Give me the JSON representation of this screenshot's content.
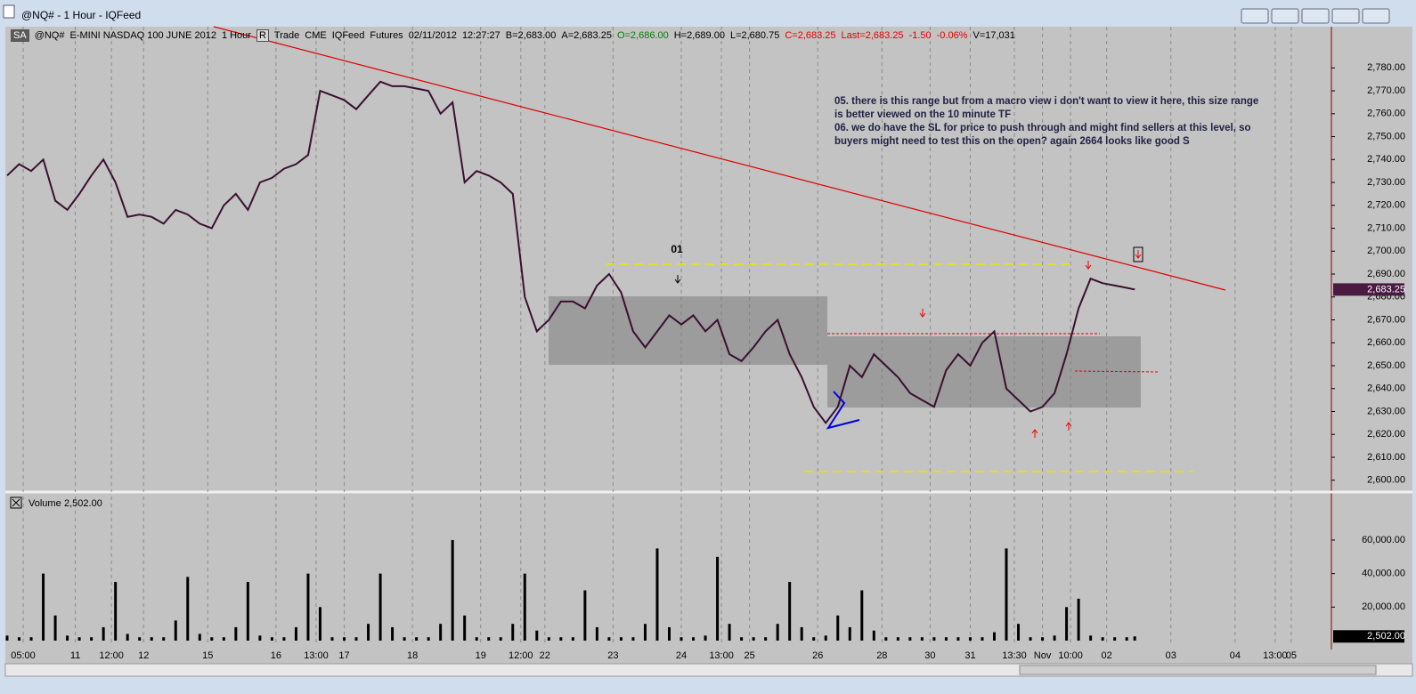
{
  "window": {
    "title": "@NQ# - 1 Hour - IQFeed"
  },
  "toolbar": {
    "symbol_box": "SA",
    "symbol": "@NQ#",
    "description": "E-MINI NASDAQ 100 JUNE 2012",
    "interval": "1 Hour",
    "r_button": "R",
    "fields": [
      "Trade",
      "CME",
      "IQFeed",
      "Futures",
      "02/11/2012",
      "12:27:27",
      "B=2,683.00",
      "A=2,683.25",
      "O=2,686.00",
      "H=2,689.00",
      "L=2,680.75",
      "C=2,683.25",
      "Last=2,683.25",
      "-1.50",
      "-0.06%",
      "V=17,031"
    ]
  },
  "chart_data": [
    {
      "type": "line",
      "color": "#3a1030",
      "x": [
        0,
        3,
        6,
        9,
        12,
        15,
        18,
        21,
        24,
        27,
        30,
        33,
        36,
        39,
        42,
        45,
        48,
        51,
        54,
        57,
        60,
        63,
        66,
        69,
        72,
        75,
        78,
        81,
        84,
        87,
        90,
        93,
        96,
        99,
        102,
        105,
        108,
        111,
        114,
        117,
        120,
        123,
        126,
        129,
        132,
        135,
        138,
        141,
        144,
        147,
        150,
        153,
        156,
        159,
        162,
        165,
        168,
        171,
        174,
        177,
        180,
        183,
        186,
        189,
        192,
        195,
        198,
        201,
        204,
        207,
        210,
        213,
        216,
        219,
        222,
        225,
        228,
        231,
        234,
        237,
        240,
        243,
        246,
        249,
        252,
        255,
        258,
        261,
        264,
        267,
        270,
        273,
        276,
        279,
        281
      ],
      "values": [
        2733,
        2738,
        2735,
        2740,
        2722,
        2718,
        2725,
        2733,
        2740,
        2730,
        2715,
        2716,
        2715,
        2712,
        2718,
        2716,
        2712,
        2710,
        2720,
        2725,
        2718,
        2730,
        2732,
        2736,
        2738,
        2742,
        2770,
        2768,
        2766,
        2762,
        2768,
        2774,
        2772,
        2772,
        2771,
        2770,
        2760,
        2765,
        2730,
        2735,
        2733,
        2730,
        2725,
        2680,
        2665,
        2670,
        2678,
        2678,
        2675,
        2685,
        2690,
        2682,
        2665,
        2658,
        2665,
        2672,
        2668,
        2672,
        2665,
        2670,
        2655,
        2652,
        2658,
        2665,
        2670,
        2655,
        2645,
        2632,
        2625,
        2632,
        2650,
        2645,
        2655,
        2650,
        2645,
        2638,
        2635,
        2632,
        2648,
        2655,
        2650,
        2660,
        2665,
        2640,
        2635,
        2630,
        2632,
        2638,
        2655,
        2675,
        2688,
        2686,
        2685,
        2684,
        2683.25
      ],
      "xlim": [
        0,
        330
      ],
      "ylim": [
        2596,
        2798
      ],
      "yticks": [
        {
          "value": 2600,
          "label": "2,600.00"
        },
        {
          "value": 2610,
          "label": "2,610.00"
        },
        {
          "value": 2620,
          "label": "2,620.00"
        },
        {
          "value": 2630,
          "label": "2,630.00"
        },
        {
          "value": 2640,
          "label": "2,640.00"
        },
        {
          "value": 2650,
          "label": "2,650.00"
        },
        {
          "value": 2660,
          "label": "2,660.00"
        },
        {
          "value": 2670,
          "label": "2,670.00"
        },
        {
          "value": 2680,
          "label": "2,680.00"
        },
        {
          "value": 2690,
          "label": "2,690.00"
        },
        {
          "value": 2700,
          "label": "2,700.00"
        },
        {
          "value": 2710,
          "label": "2,710.00"
        },
        {
          "value": 2720,
          "label": "2,720.00"
        },
        {
          "value": 2730,
          "label": "2,730.00"
        },
        {
          "value": 2740,
          "label": "2,740.00"
        },
        {
          "value": 2750,
          "label": "2,750.00"
        },
        {
          "value": 2760,
          "label": "2,760.00"
        },
        {
          "value": 2770,
          "label": "2,770.00"
        },
        {
          "value": 2780,
          "label": "2,780.00"
        }
      ],
      "last": {
        "value": 2683.25,
        "label": "2,683.25"
      },
      "annotations": [
        "01",
        "05. there is this range but from a macro view i don't want to view it here, this size range",
        "is better viewed on the 10 minute TF",
        "06. we do have the SL for price to push through and might find sellers at this level, so",
        "buyers might need to test this on the open? again 2664 looks like good S"
      ]
    },
    {
      "type": "bar",
      "title": "Volume",
      "color": "#000000",
      "x": [
        0,
        3,
        6,
        9,
        12,
        15,
        18,
        21,
        24,
        27,
        30,
        33,
        36,
        39,
        42,
        45,
        48,
        51,
        54,
        57,
        60,
        63,
        66,
        69,
        72,
        75,
        78,
        81,
        84,
        87,
        90,
        93,
        96,
        99,
        102,
        105,
        108,
        111,
        114,
        117,
        120,
        123,
        126,
        129,
        132,
        135,
        138,
        141,
        144,
        147,
        150,
        153,
        156,
        159,
        162,
        165,
        168,
        171,
        174,
        177,
        180,
        183,
        186,
        189,
        192,
        195,
        198,
        201,
        204,
        207,
        210,
        213,
        216,
        219,
        222,
        225,
        228,
        231,
        234,
        237,
        240,
        243,
        246,
        249,
        252,
        255,
        258,
        261,
        264,
        267,
        270,
        273,
        276,
        279,
        281
      ],
      "values": [
        3000,
        2000,
        2000,
        40000,
        15000,
        3000,
        2000,
        2000,
        8000,
        35000,
        4000,
        2000,
        2000,
        2000,
        12000,
        38000,
        4000,
        2000,
        2000,
        8000,
        35000,
        3000,
        2000,
        2000,
        8000,
        40000,
        20000,
        2000,
        2000,
        2000,
        10000,
        40000,
        8000,
        2000,
        2000,
        2000,
        10000,
        60000,
        15000,
        2000,
        2000,
        2000,
        10000,
        40000,
        6000,
        2000,
        2000,
        2000,
        30000,
        8000,
        2000,
        2000,
        2000,
        10000,
        55000,
        8000,
        2000,
        2000,
        3000,
        50000,
        10000,
        2000,
        2000,
        2000,
        10000,
        35000,
        8000,
        2000,
        3000,
        15000,
        8000,
        30000,
        6000,
        2000,
        2000,
        2000,
        2000,
        2000,
        2000,
        2000,
        2000,
        2000,
        5000,
        55000,
        10000,
        2000,
        2000,
        3000,
        20000,
        25000,
        3000,
        2000,
        2000,
        2000,
        2502
      ],
      "xlim": [
        0,
        330
      ],
      "ylim": [
        0,
        86000
      ],
      "yticks": [
        {
          "value": 20000,
          "label": "20,000.00"
        },
        {
          "value": 40000,
          "label": "40,000.00"
        },
        {
          "value": 60000,
          "label": "60,000.00"
        }
      ],
      "last": {
        "value": 2502,
        "label": "2,502.00"
      },
      "xticks": [
        {
          "value": 4,
          "label": "05:00"
        },
        {
          "value": 17,
          "label": "11"
        },
        {
          "value": 26,
          "label": "12:00"
        },
        {
          "value": 34,
          "label": "12"
        },
        {
          "value": 50,
          "label": "15"
        },
        {
          "value": 67,
          "label": "16"
        },
        {
          "value": 77,
          "label": "13:00"
        },
        {
          "value": 84,
          "label": "17"
        },
        {
          "value": 101,
          "label": "18"
        },
        {
          "value": 118,
          "label": "19"
        },
        {
          "value": 128,
          "label": "12:00"
        },
        {
          "value": 134,
          "label": "22"
        },
        {
          "value": 151,
          "label": "23"
        },
        {
          "value": 168,
          "label": "24"
        },
        {
          "value": 178,
          "label": "13:00"
        },
        {
          "value": 185,
          "label": "25"
        },
        {
          "value": 202,
          "label": "26"
        },
        {
          "value": 218,
          "label": "28"
        },
        {
          "value": 230,
          "label": "30"
        },
        {
          "value": 240,
          "label": "31"
        },
        {
          "value": 251,
          "label": "13:30"
        },
        {
          "value": 258,
          "label": "Nov"
        },
        {
          "value": 265,
          "label": "10:00"
        },
        {
          "value": 274,
          "label": "02"
        },
        {
          "value": 290,
          "label": "03"
        },
        {
          "value": 306,
          "label": "04"
        },
        {
          "value": 316,
          "label": "13:00"
        },
        {
          "value": 320,
          "label": "05"
        }
      ]
    }
  ]
}
